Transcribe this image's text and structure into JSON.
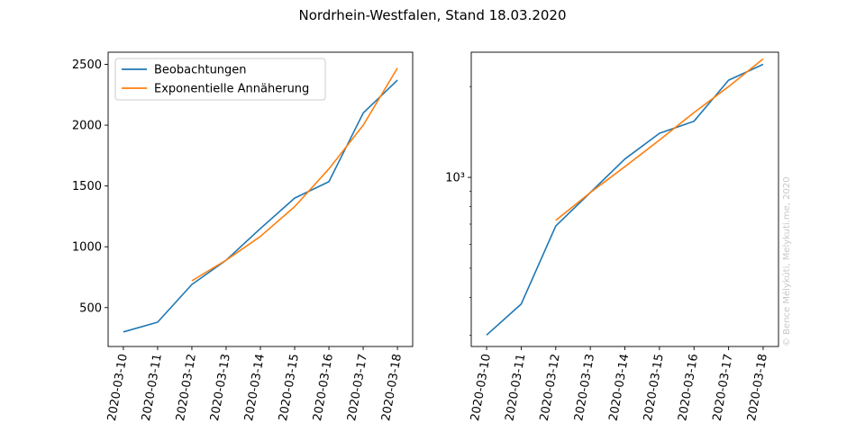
{
  "figure": {
    "title": "Nordrhein-Westfalen, Stand 18.03.2020",
    "watermark": "© Bence Mélykúti, Melykuti.me, 2020"
  },
  "chart_data": [
    {
      "type": "line",
      "scale": "linear",
      "title": "",
      "xlabel": "",
      "ylabel": "",
      "x": [
        "2020-03-10",
        "2020-03-11",
        "2020-03-12",
        "2020-03-13",
        "2020-03-14",
        "2020-03-15",
        "2020-03-16",
        "2020-03-17",
        "2020-03-18"
      ],
      "ylim": [
        180,
        2600
      ],
      "yticks": [
        500,
        1000,
        1500,
        2000,
        2500
      ],
      "grid": false,
      "legend": {
        "placement": "upper-left"
      },
      "series": [
        {
          "name": "Beobachtungen",
          "color": "#1f77b4",
          "values": [
            300,
            380,
            690,
            890,
            1150,
            1400,
            1535,
            2100,
            2370
          ]
        },
        {
          "name": "Exponentielle Annäherung",
          "color": "#ff7f0e",
          "values": [
            null,
            null,
            720,
            890,
            1085,
            1330,
            1640,
            2000,
            2470
          ]
        }
      ]
    },
    {
      "type": "line",
      "scale": "log",
      "title": "",
      "xlabel": "",
      "ylabel": "",
      "x": [
        "2020-03-10",
        "2020-03-11",
        "2020-03-12",
        "2020-03-13",
        "2020-03-14",
        "2020-03-15",
        "2020-03-16",
        "2020-03-17",
        "2020-03-18"
      ],
      "ylim": [
        275,
        2600
      ],
      "yticks": [
        1000
      ],
      "ytick_labels": [
        "10³"
      ],
      "grid": false,
      "series": [
        {
          "name": "Beobachtungen",
          "color": "#1f77b4",
          "values": [
            300,
            380,
            690,
            890,
            1150,
            1400,
            1535,
            2100,
            2370
          ]
        },
        {
          "name": "Exponentielle Annäherung",
          "color": "#ff7f0e",
          "values": [
            null,
            null,
            720,
            890,
            1085,
            1330,
            1640,
            2000,
            2470
          ]
        }
      ]
    }
  ]
}
